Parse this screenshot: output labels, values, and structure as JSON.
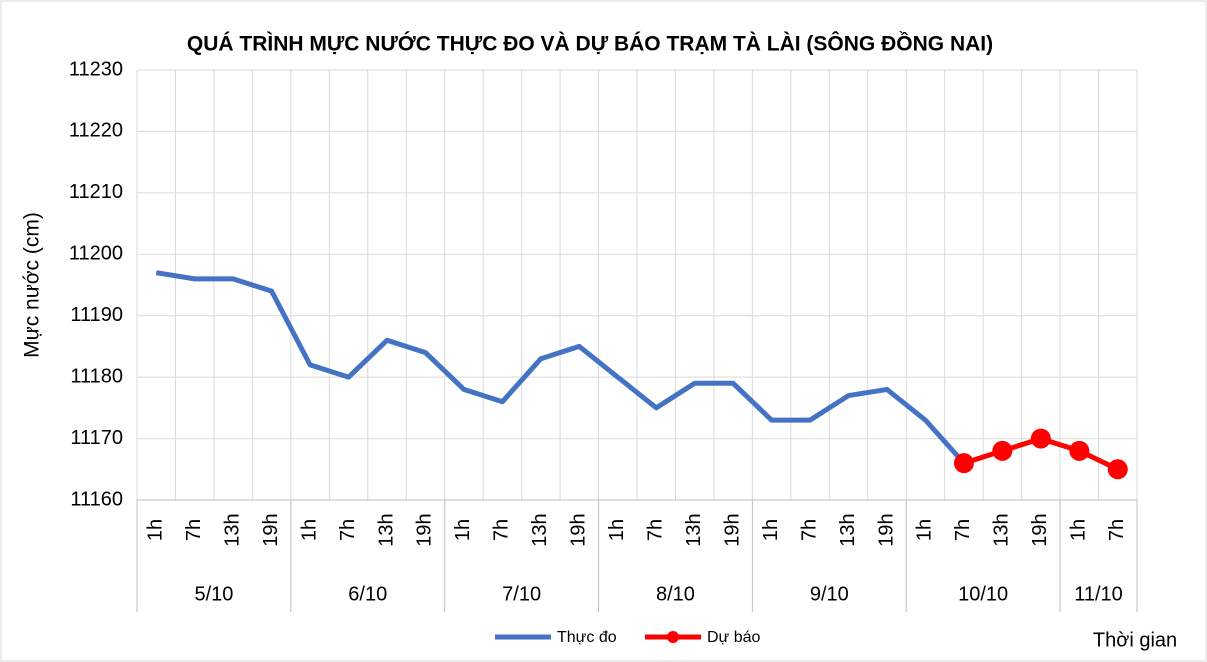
{
  "chart_data": {
    "type": "line",
    "title": "QUÁ TRÌNH MỰC NƯỚC THỰC ĐO VÀ DỰ BÁO TRẠM TÀ LÀI (SÔNG ĐỒNG NAI)",
    "y_label": "Mực nước (cm)",
    "x_label": "Thời gian",
    "groups": [
      {
        "name": "5/10",
        "categories": [
          "1h",
          "7h",
          "13h",
          "19h"
        ]
      },
      {
        "name": "6/10",
        "categories": [
          "1h",
          "7h",
          "13h",
          "19h"
        ]
      },
      {
        "name": "7/10",
        "categories": [
          "1h",
          "7h",
          "13h",
          "19h"
        ]
      },
      {
        "name": "8/10",
        "categories": [
          "1h",
          "7h",
          "13h",
          "19h"
        ]
      },
      {
        "name": "9/10",
        "categories": [
          "1h",
          "7h",
          "13h",
          "19h"
        ]
      },
      {
        "name": "10/10",
        "categories": [
          "1h",
          "7h",
          "13h",
          "19h"
        ]
      },
      {
        "name": "11/10",
        "categories": [
          "1h",
          "7h"
        ]
      }
    ],
    "series": [
      {
        "name": "Thực đo",
        "color": "#4472c4",
        "markers": false,
        "values": [
          11197,
          11196,
          11196,
          11194,
          11182,
          11180,
          11186,
          11184,
          11178,
          11176,
          11183,
          11185,
          11180,
          11175,
          11179,
          11179,
          11173,
          11173,
          11177,
          11178,
          11173,
          11166,
          null,
          null,
          null,
          null
        ]
      },
      {
        "name": "Dự báo",
        "color": "#ff0000",
        "markers": true,
        "values": [
          null,
          null,
          null,
          null,
          null,
          null,
          null,
          null,
          null,
          null,
          null,
          null,
          null,
          null,
          null,
          null,
          null,
          null,
          null,
          null,
          null,
          11166,
          11168,
          11170,
          11168,
          11165
        ]
      }
    ],
    "ylim": [
      11160,
      11230
    ],
    "yticks": [
      11160,
      11170,
      11180,
      11190,
      11200,
      11210,
      11220,
      11230
    ],
    "grid": true,
    "legend": "bottom"
  }
}
